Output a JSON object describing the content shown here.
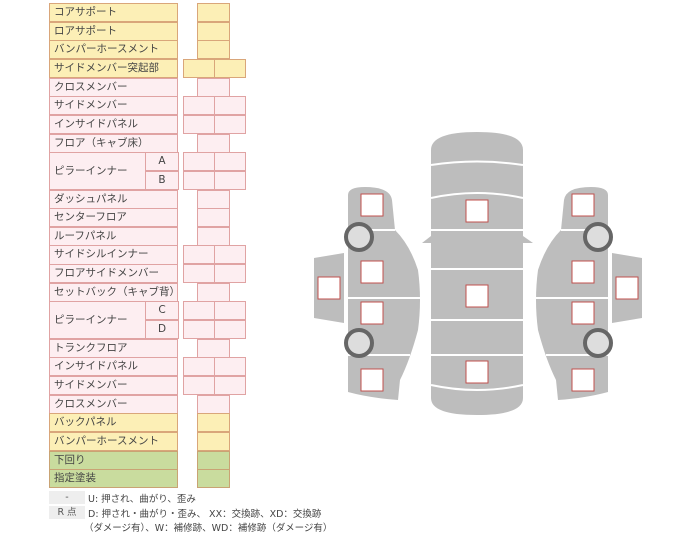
{
  "rows": [
    {
      "label": "コアサポート",
      "color": "y",
      "cells": 1
    },
    {
      "label": "ロアサポート",
      "color": "y",
      "cells": 1
    },
    {
      "label": "バンパーホースメント",
      "color": "y",
      "cells": 1
    },
    {
      "label": "サイドメンバー突起部",
      "color": "y",
      "cells": 2
    },
    {
      "label": "クロスメンバー",
      "color": "p",
      "cells": 1
    },
    {
      "label": "サイドメンバー",
      "color": "p",
      "cells": 2
    },
    {
      "label": "インサイドパネル",
      "color": "p",
      "cells": 2
    },
    {
      "label": "フロア（キャブ床）",
      "color": "p",
      "cells": 1
    },
    {
      "label": "ピラーインナー",
      "sub": "A",
      "color": "p",
      "cells": 2
    },
    {
      "label": "",
      "sub": "B",
      "color": "p",
      "cells": 2
    },
    {
      "label": "ダッシュパネル",
      "color": "p",
      "cells": 1
    },
    {
      "label": "センターフロア",
      "color": "p",
      "cells": 1
    },
    {
      "label": "ルーフパネル",
      "color": "p",
      "cells": 1
    },
    {
      "label": "サイドシルインナー",
      "color": "p",
      "cells": 2
    },
    {
      "label": "フロアサイドメンバー",
      "color": "p",
      "cells": 2
    },
    {
      "label": "セットバック（キャブ背）",
      "color": "p",
      "cells": 1
    },
    {
      "label": "ピラーインナー",
      "sub": "C",
      "color": "p",
      "cells": 2
    },
    {
      "label": "",
      "sub": "D",
      "color": "p",
      "cells": 2
    },
    {
      "label": "トランクフロア",
      "color": "p",
      "cells": 1
    },
    {
      "label": "インサイドパネル",
      "color": "p",
      "cells": 2
    },
    {
      "label": "サイドメンバー",
      "color": "p",
      "cells": 2
    },
    {
      "label": "クロスメンバー",
      "color": "p",
      "cells": 1
    },
    {
      "label": "バックパネル",
      "color": "y",
      "cells": 1
    },
    {
      "label": "バンパーホースメント",
      "color": "y",
      "cells": 1
    },
    {
      "label": "下回り",
      "color": "g",
      "cells": 1
    },
    {
      "label": "指定塗装",
      "color": "g",
      "cells": 1
    }
  ],
  "legend": {
    "dash_key": "-",
    "dash_text": "U: 押され、曲がり、歪み",
    "r_key": "R 点",
    "r_text_1": "D: 押され・曲がり・歪み、 XX：交換跡、XD：交換跡",
    "r_text_2": "（ダメージ有）、W：補修跡、WD：補修跡（ダメージ有）"
  },
  "colors": {
    "body_gray": "#bdbdbd",
    "box_border": "#c0504d",
    "wheel": "#666666"
  }
}
